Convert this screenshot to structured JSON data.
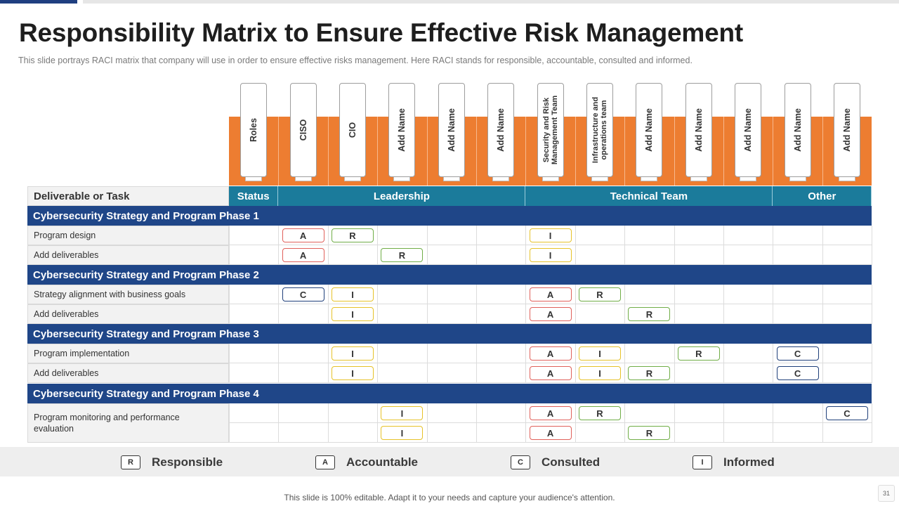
{
  "title": "Responsibility Matrix to Ensure Effective Risk Management",
  "subtitle": "This slide portrays RACI matrix that company will use in order to ensure effective  risks management.  Here RACI stands for responsible,  accountable,  consulted and informed.",
  "columns": [
    {
      "label": "Roles"
    },
    {
      "label": "CISO"
    },
    {
      "label": "CIO"
    },
    {
      "label": "Add Name"
    },
    {
      "label": "Add Name"
    },
    {
      "label": "Add Name"
    },
    {
      "label": "Security and Risk Management Team"
    },
    {
      "label": "Infrastructure and operations team"
    },
    {
      "label": "Add Name"
    },
    {
      "label": "Add Name"
    },
    {
      "label": "Add Name"
    },
    {
      "label": "Add Name"
    },
    {
      "label": "Add Name"
    }
  ],
  "header": {
    "task_label": "Deliverable or Task",
    "groups": [
      {
        "label": "Status"
      },
      {
        "label": "Leadership"
      },
      {
        "label": "Technical Team"
      },
      {
        "label": "Other"
      }
    ]
  },
  "phases": [
    {
      "label": "Cybersecurity Strategy and Program Phase 1"
    },
    {
      "label": "Cybersecurity Strategy and Program Phase 2"
    },
    {
      "label": "Cybersecurity Strategy and Program Phase 3"
    },
    {
      "label": "Cybersecurity Strategy and Program Phase 4"
    }
  ],
  "tasks": [
    {
      "label": "Program  design"
    },
    {
      "label": "Add deliverables"
    },
    {
      "label": "Strategy alignment with business goals"
    },
    {
      "label": "Add deliverables"
    },
    {
      "label": "Program  implementation"
    },
    {
      "label": "Add deliverables"
    },
    {
      "label": "Program  monitoring and performance evaluation"
    }
  ],
  "assignments": [
    {
      "row": 0,
      "col": 1,
      "code": "A"
    },
    {
      "row": 0,
      "col": 2,
      "code": "R"
    },
    {
      "row": 0,
      "col": 6,
      "code": "I"
    },
    {
      "row": 1,
      "col": 1,
      "code": "A"
    },
    {
      "row": 1,
      "col": 3,
      "code": "R"
    },
    {
      "row": 1,
      "col": 6,
      "code": "I"
    },
    {
      "row": 2,
      "col": 1,
      "code": "C"
    },
    {
      "row": 2,
      "col": 2,
      "code": "I"
    },
    {
      "row": 2,
      "col": 6,
      "code": "A"
    },
    {
      "row": 2,
      "col": 7,
      "code": "R"
    },
    {
      "row": 3,
      "col": 2,
      "code": "I"
    },
    {
      "row": 3,
      "col": 6,
      "code": "A"
    },
    {
      "row": 3,
      "col": 8,
      "code": "R"
    },
    {
      "row": 4,
      "col": 2,
      "code": "I"
    },
    {
      "row": 4,
      "col": 6,
      "code": "A"
    },
    {
      "row": 4,
      "col": 7,
      "code": "I"
    },
    {
      "row": 4,
      "col": 9,
      "code": "R"
    },
    {
      "row": 4,
      "col": 11,
      "code": "C"
    },
    {
      "row": 5,
      "col": 2,
      "code": "I"
    },
    {
      "row": 5,
      "col": 6,
      "code": "A"
    },
    {
      "row": 5,
      "col": 7,
      "code": "I"
    },
    {
      "row": 5,
      "col": 8,
      "code": "R"
    },
    {
      "row": 5,
      "col": 11,
      "code": "C"
    },
    {
      "row": 6,
      "col": 3,
      "code": "I"
    },
    {
      "row": 6,
      "col": 6,
      "code": "A"
    },
    {
      "row": 6,
      "col": 7,
      "code": "R"
    },
    {
      "row": 6,
      "col": 12,
      "code": "C"
    },
    {
      "row": 7,
      "col": 3,
      "code": "I"
    },
    {
      "row": 7,
      "col": 6,
      "code": "A"
    },
    {
      "row": 7,
      "col": 8,
      "code": "R"
    }
  ],
  "legend": [
    {
      "code": "R",
      "label": "Responsible"
    },
    {
      "code": "A",
      "label": "Accountable"
    },
    {
      "code": "C",
      "label": "Consulted"
    },
    {
      "code": "I",
      "label": "Informed"
    }
  ],
  "colors": {
    "R": "#70ad47",
    "A": "#e0605a",
    "C": "#1f3f7a",
    "I": "#e6c229",
    "phase_bg": "#1f4688",
    "group_bg": "#1b7b9b",
    "header_band": "#ed7d31"
  },
  "footer": "This slide is 100% editable. Adapt it to your needs and capture your audience's attention.",
  "page_number": "31"
}
